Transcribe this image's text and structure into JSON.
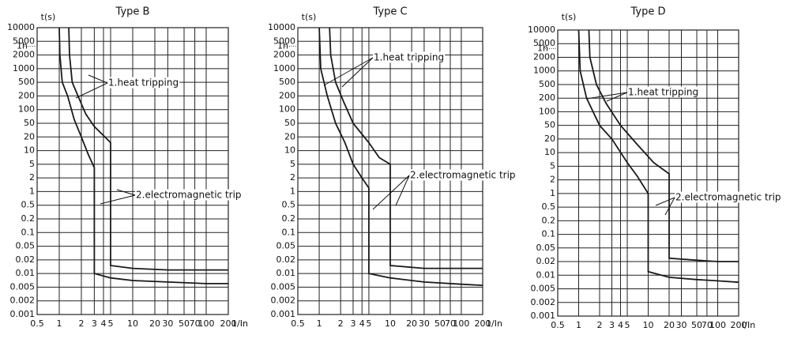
{
  "chart_data": [
    {
      "type": "line",
      "title": "Type B",
      "y_label": "t(s)",
      "x_label": "1/In",
      "xlim": [
        0.5,
        200
      ],
      "ylim": [
        0.001,
        10000
      ],
      "xscale": "log",
      "grid": true,
      "xticks": [
        0.5,
        1,
        2,
        3,
        4,
        5,
        10,
        20,
        30,
        50,
        70,
        100,
        200
      ],
      "yticks": [
        10000,
        5000,
        2000,
        1000,
        500,
        200,
        100,
        50,
        20,
        10,
        5,
        2,
        1,
        0.5,
        0.2,
        0.1,
        0.05,
        0.02,
        0.01,
        0.005,
        0.002,
        0.001
      ],
      "hour_mark": {
        "value": 3600,
        "label": "1h"
      },
      "annotations": [
        "1.heat tripping",
        "2.electromagnetic trip"
      ],
      "series": [
        {
          "color": "#1a1a1a",
          "x": [
            1.35,
            1.38,
            1.5,
            1.8,
            2.3,
            3,
            4,
            5,
            5,
            10,
            30,
            100,
            200
          ],
          "values": [
            10000,
            2000,
            500,
            200,
            80,
            40,
            22,
            15,
            0.015,
            0.013,
            0.012,
            0.012,
            0.012
          ]
        },
        {
          "color": "#1a1a1a",
          "x": [
            1.0,
            1.02,
            1.1,
            1.3,
            1.6,
            2,
            2.5,
            3,
            3,
            5,
            10,
            30,
            100,
            200
          ],
          "values": [
            10000,
            2000,
            500,
            200,
            60,
            20,
            8,
            4,
            0.01,
            0.008,
            0.007,
            0.0065,
            0.006,
            0.006
          ]
        }
      ]
    },
    {
      "type": "line",
      "title": "Type C",
      "y_label": "t(s)",
      "x_label": "1/In",
      "xlim": [
        0.5,
        200
      ],
      "ylim": [
        0.001,
        10000
      ],
      "xscale": "log",
      "grid": true,
      "xticks": [
        0.5,
        1,
        2,
        3,
        4,
        5,
        10,
        20,
        30,
        50,
        70,
        100,
        200
      ],
      "yticks": [
        10000,
        5000,
        2000,
        1000,
        500,
        200,
        100,
        50,
        20,
        10,
        5,
        2,
        1,
        0.5,
        0.2,
        0.1,
        0.05,
        0.02,
        0.01,
        0.005,
        0.002,
        0.001
      ],
      "hour_mark": {
        "value": 3600,
        "label": "1h"
      },
      "annotations": [
        "1.heat tripping",
        "2.electromagnetic trip"
      ],
      "series": [
        {
          "color": "#1a1a1a",
          "x": [
            1.4,
            1.45,
            1.7,
            2.2,
            3,
            5,
            7,
            10,
            10,
            30,
            100,
            200
          ],
          "values": [
            10000,
            2000,
            500,
            150,
            50,
            15,
            7,
            5,
            0.015,
            0.013,
            0.013,
            0.013
          ]
        },
        {
          "color": "#1a1a1a",
          "x": [
            1,
            1.05,
            1.3,
            1.7,
            2.3,
            3,
            4,
            5,
            5,
            10,
            30,
            100,
            200
          ],
          "values": [
            10000,
            1000,
            200,
            50,
            15,
            5,
            2,
            1.2,
            0.01,
            0.008,
            0.0065,
            0.0058,
            0.0055
          ]
        }
      ]
    },
    {
      "type": "line",
      "title": "Type D",
      "y_label": "t(s)",
      "x_label": "I/In",
      "xlim": [
        0.5,
        200
      ],
      "ylim": [
        0.001,
        10000
      ],
      "xscale": "log",
      "grid": true,
      "xticks": [
        0.5,
        1,
        2,
        3,
        4,
        5,
        10,
        20,
        30,
        50,
        70,
        100,
        200
      ],
      "yticks": [
        10000,
        5000,
        2000,
        1000,
        500,
        200,
        100,
        50,
        20,
        10,
        5,
        2,
        1,
        0.5,
        0.2,
        0.1,
        0.05,
        0.02,
        0.01,
        0.005,
        0.002,
        0.001
      ],
      "hour_mark": {
        "value": 3600,
        "label": "1h"
      },
      "annotations": [
        "1.heat tripping",
        "2.electromagnetic trip"
      ],
      "series": [
        {
          "color": "#1a1a1a",
          "x": [
            1.4,
            1.45,
            1.8,
            2.5,
            4,
            7,
            12,
            20,
            20,
            50,
            100,
            200
          ],
          "values": [
            10000,
            2000,
            500,
            150,
            50,
            15,
            6,
            3,
            0.025,
            0.022,
            0.02,
            0.02
          ]
        },
        {
          "color": "#1a1a1a",
          "x": [
            1,
            1.05,
            1.3,
            2,
            3,
            5,
            7,
            10,
            10,
            20,
            50,
            100,
            200
          ],
          "values": [
            10000,
            1000,
            200,
            50,
            20,
            6,
            2.5,
            1,
            0.012,
            0.009,
            0.008,
            0.0075,
            0.007
          ]
        }
      ]
    }
  ]
}
